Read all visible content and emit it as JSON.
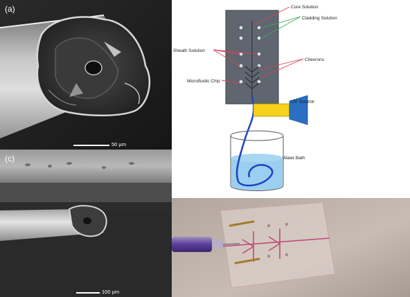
{
  "panel_a": {
    "letter": "(a)",
    "scale_label": "50 µm"
  },
  "panel_c": {
    "letter": "(c)",
    "scale_label": "100 µm"
  },
  "schematic": {
    "labels": {
      "core": "Core Solution",
      "cladding": "Cladding Solution",
      "sheath": "Sheath Solution",
      "chevrons": "Chevrons",
      "chip": "Microfluidic Chip",
      "uv": "UV Source",
      "bath": "Water Bath"
    },
    "colors": {
      "chip": "#5f6670",
      "core_line": "#d6405a",
      "cladding_line": "#3fa85a",
      "sheath_line": "#d6405a",
      "fiber": "#1f43c4",
      "water": "#89c7ec",
      "uv_body": "#f6d21b",
      "uv_head": "#2a6fc4"
    }
  },
  "photo": {
    "description_icons": [
      "syringe-icon",
      "chip-icon"
    ]
  }
}
